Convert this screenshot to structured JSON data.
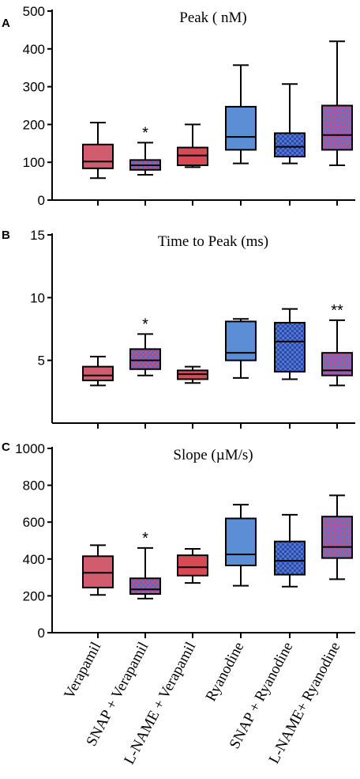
{
  "chart_data": [
    {
      "type": "box",
      "panel_label": "A",
      "title": "Peak ( nM)",
      "ylim": [
        0,
        500
      ],
      "yticks": [
        0,
        100,
        200,
        300,
        400,
        500
      ],
      "categories": [
        "Verapamil",
        "SNAP + Verapamil",
        "L-NAME + Verapamil",
        "Ryanodine",
        "SNAP + Ryanodine",
        "L-NAME+ Ryanodine"
      ],
      "boxes": [
        {
          "min": 58,
          "q1": 84,
          "median": 102,
          "q3": 147,
          "max": 205
        },
        {
          "min": 67,
          "q1": 80,
          "median": 92,
          "q3": 106,
          "max": 152
        },
        {
          "min": 87,
          "q1": 92,
          "median": 118,
          "q3": 139,
          "max": 200
        },
        {
          "min": 97,
          "q1": 133,
          "median": 167,
          "q3": 247,
          "max": 357
        },
        {
          "min": 97,
          "q1": 115,
          "median": 141,
          "q3": 177,
          "max": 307
        },
        {
          "min": 92,
          "q1": 133,
          "median": 172,
          "q3": 250,
          "max": 420
        }
      ],
      "annotations": [
        "",
        "*",
        "",
        "",
        "",
        ""
      ]
    },
    {
      "type": "box",
      "panel_label": "B",
      "title": "Time to Peak (ms)",
      "ylim": [
        0,
        15
      ],
      "yticks": [
        5,
        10,
        15
      ],
      "categories": [
        "Verapamil",
        "SNAP + Verapamil",
        "L-NAME + Verapamil",
        "Ryanodine",
        "SNAP + Ryanodine",
        "L-NAME+ Ryanodine"
      ],
      "boxes": [
        {
          "min": 3.0,
          "q1": 3.4,
          "median": 3.8,
          "q3": 4.5,
          "max": 5.3
        },
        {
          "min": 3.8,
          "q1": 4.3,
          "median": 5.0,
          "q3": 5.9,
          "max": 7.1
        },
        {
          "min": 3.2,
          "q1": 3.5,
          "median": 3.9,
          "q3": 4.2,
          "max": 4.5
        },
        {
          "min": 3.6,
          "q1": 5.0,
          "median": 5.6,
          "q3": 8.1,
          "max": 8.3
        },
        {
          "min": 3.5,
          "q1": 4.1,
          "median": 6.5,
          "q3": 8.0,
          "max": 9.1
        },
        {
          "min": 3.0,
          "q1": 3.8,
          "median": 4.2,
          "q3": 5.6,
          "max": 8.2
        }
      ],
      "annotations": [
        "",
        "*",
        "",
        "",
        "",
        "**"
      ]
    },
    {
      "type": "box",
      "panel_label": "C",
      "title": "Slope (µM/s)",
      "ylim": [
        0,
        1000
      ],
      "yticks": [
        0,
        200,
        400,
        600,
        800,
        1000
      ],
      "categories": [
        "Verapamil",
        "SNAP + Verapamil",
        "L-NAME + Verapamil",
        "Ryanodine",
        "SNAP + Ryanodine",
        "L-NAME+ Ryanodine"
      ],
      "boxes": [
        {
          "min": 205,
          "q1": 245,
          "median": 325,
          "q3": 415,
          "max": 475
        },
        {
          "min": 185,
          "q1": 210,
          "median": 235,
          "q3": 295,
          "max": 460
        },
        {
          "min": 270,
          "q1": 310,
          "median": 355,
          "q3": 420,
          "max": 455
        },
        {
          "min": 255,
          "q1": 365,
          "median": 425,
          "q3": 620,
          "max": 695
        },
        {
          "min": 250,
          "q1": 315,
          "median": 390,
          "q3": 495,
          "max": 640
        },
        {
          "min": 290,
          "q1": 405,
          "median": 465,
          "q3": 630,
          "max": 745
        }
      ],
      "annotations": [
        "",
        "*",
        "",
        "",
        "",
        ""
      ]
    }
  ],
  "styles": {
    "fills": [
      "#d05c6e",
      "#c84f78",
      "#e8434f",
      "#5b8ed4",
      "#4f77d1",
      "#d6467e"
    ],
    "pattern_colors": [
      "",
      "#5c66c8",
      "#c8505a",
      "",
      "#2f4aa8",
      "#5a78d2"
    ],
    "patterned": [
      false,
      true,
      true,
      false,
      true,
      true
    ],
    "stroke": "#000000"
  }
}
